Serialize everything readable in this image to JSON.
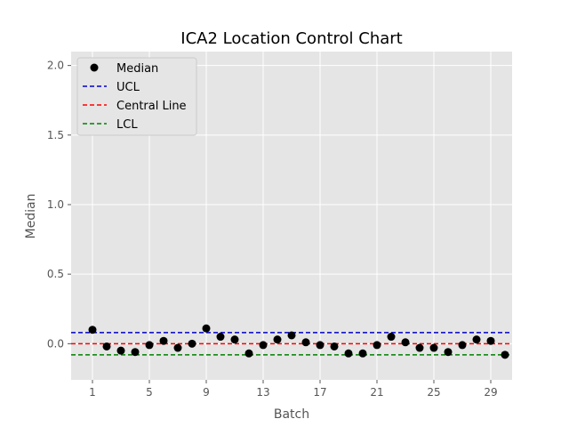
{
  "chart_data": {
    "type": "scatter",
    "title": "ICA2 Location Control Chart",
    "xlabel": "Batch",
    "ylabel": "Median",
    "xlim": [
      -0.5,
      30.5
    ],
    "ylim": [
      -0.26,
      2.1
    ],
    "x_ticks": [
      1,
      5,
      9,
      13,
      17,
      21,
      25,
      29
    ],
    "y_ticks": [
      0.0,
      0.5,
      1.0,
      1.5,
      2.0
    ],
    "y_tick_labels": [
      "0.0",
      "0.5",
      "1.0",
      "1.5",
      "2.0"
    ],
    "grid": true,
    "legend_position": "top-left",
    "series": [
      {
        "name": "Median",
        "kind": "points",
        "color": "#000000",
        "x": [
          1,
          2,
          3,
          4,
          5,
          6,
          7,
          8,
          9,
          10,
          11,
          12,
          13,
          14,
          15,
          16,
          17,
          18,
          19,
          20,
          21,
          22,
          23,
          24,
          25,
          26,
          27,
          28,
          29,
          30
        ],
        "y": [
          0.1,
          -0.02,
          -0.05,
          -0.06,
          -0.01,
          0.02,
          -0.03,
          0.0,
          0.11,
          0.05,
          0.03,
          -0.07,
          -0.01,
          0.03,
          0.06,
          0.01,
          -0.01,
          -0.02,
          -0.07,
          -0.07,
          -0.01,
          0.05,
          0.01,
          -0.03,
          -0.03,
          -0.06,
          -0.01,
          0.03,
          0.02,
          -0.08
        ]
      },
      {
        "name": "UCL",
        "kind": "hline",
        "color": "#0000cc",
        "y": 0.08
      },
      {
        "name": "Central Line",
        "kind": "hline",
        "color": "#ff0000",
        "y": 0.0
      },
      {
        "name": "LCL",
        "kind": "hline",
        "color": "#008000",
        "y": -0.08
      }
    ]
  }
}
